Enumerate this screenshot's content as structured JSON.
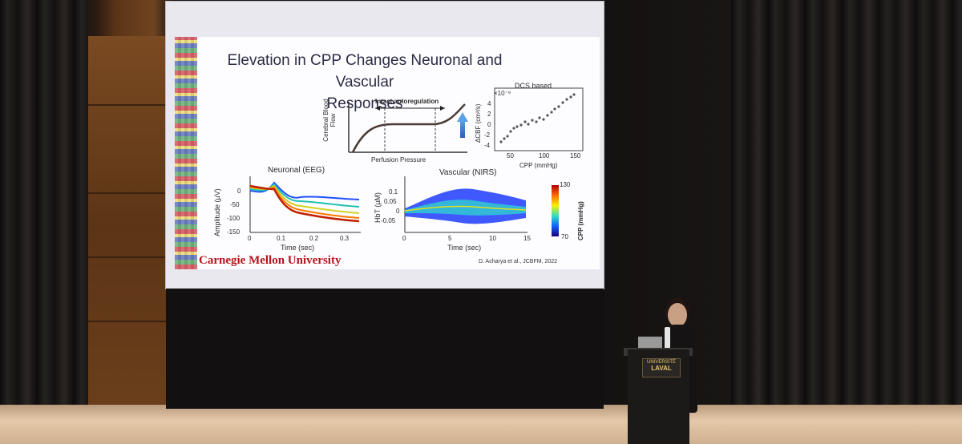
{
  "slide": {
    "title_line1": "Elevation in CPP Changes Neuronal and Vascular",
    "title_line2": "Responses",
    "autoregulation": {
      "label": "Intact autoregulation",
      "ylabel": "Cerebral Blood Flow",
      "xlabel": "Perfusion Pressure"
    },
    "dcs": {
      "title": "DCS based",
      "exponent": "×10⁻⁹",
      "ylabel": "ΔCBF (cm²/s)",
      "xlabel": "CPP (mmHg)",
      "yticks": [
        "4",
        "2",
        "0",
        "-2",
        "-4"
      ],
      "xticks": [
        "50",
        "100",
        "150"
      ]
    },
    "eeg": {
      "title": "Neuronal (EEG)",
      "ylabel": "Amplitude (µV)",
      "xlabel": "Time (sec)",
      "yticks": [
        "0",
        "-50",
        "-100",
        "-150"
      ],
      "xticks": [
        "0",
        "0.1",
        "0.2",
        "0.3"
      ]
    },
    "nirs": {
      "title": "Vascular (NIRS)",
      "ylabel": "HbT (µM)",
      "xlabel": "Time (sec)",
      "yticks": [
        "0.1",
        "0.05",
        "0",
        "-0.05"
      ],
      "xticks": [
        "0",
        "5",
        "10",
        "15"
      ]
    },
    "colorbar": {
      "label": "CPP (mmHg)",
      "max": "130",
      "min": "70"
    },
    "logo": "Carnegie Mellon University",
    "citation": "D. Acharya et al., JCBFM, 2022"
  },
  "lectern": {
    "logo_line1": "UNIVERSITÉ",
    "logo_line2": "LAVAL"
  }
}
